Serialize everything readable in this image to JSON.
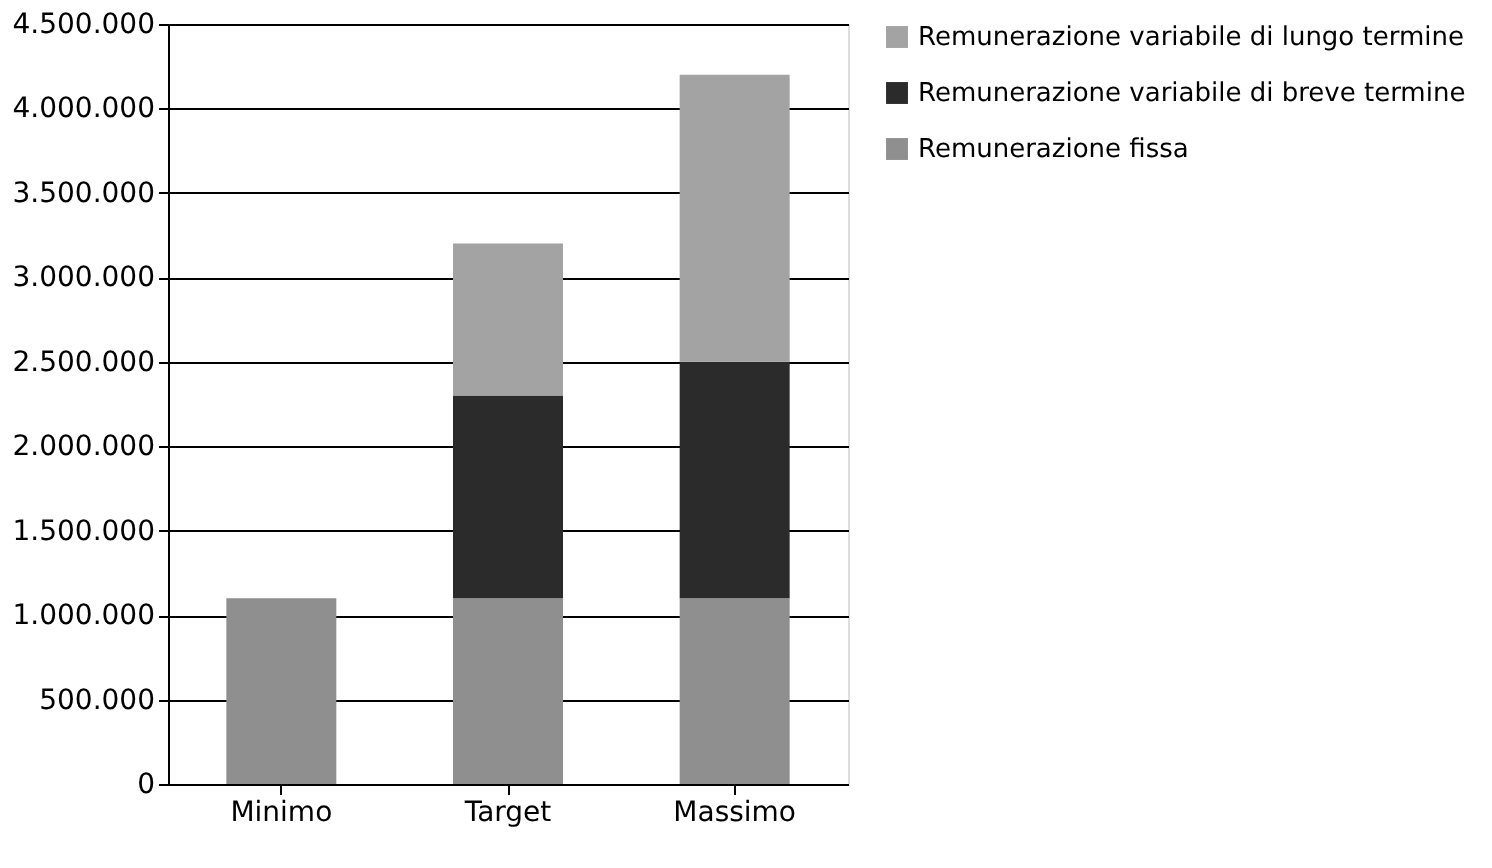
{
  "chart_data": {
    "type": "bar",
    "stacked": true,
    "categories": [
      "Minimo",
      "Target",
      "Massimo"
    ],
    "series": [
      {
        "name": "Remunerazione fissa",
        "color": "#8f8f8f",
        "values": [
          1100000,
          1100000,
          1100000
        ]
      },
      {
        "name": "Remunerazione variabile di breve termine",
        "color": "#2b2b2b",
        "values": [
          0,
          1200000,
          1400000
        ]
      },
      {
        "name": "Remunerazione variabile di lungo termine",
        "color": "#a3a3a3",
        "values": [
          0,
          900000,
          1700000
        ]
      }
    ],
    "ylim": [
      0,
      4500000
    ],
    "yticks": [
      {
        "value": 0,
        "label": "0"
      },
      {
        "value": 500000,
        "label": "500.000"
      },
      {
        "value": 1000000,
        "label": "1.000.000"
      },
      {
        "value": 1500000,
        "label": "1.500.000"
      },
      {
        "value": 2000000,
        "label": "2.000.000"
      },
      {
        "value": 2500000,
        "label": "2.500.000"
      },
      {
        "value": 3000000,
        "label": "3.000.000"
      },
      {
        "value": 3500000,
        "label": "3.500.000"
      },
      {
        "value": 4000000,
        "label": "4.000.000"
      },
      {
        "value": 4500000,
        "label": "4.500.000"
      }
    ],
    "grid": "y",
    "legend": "right"
  }
}
